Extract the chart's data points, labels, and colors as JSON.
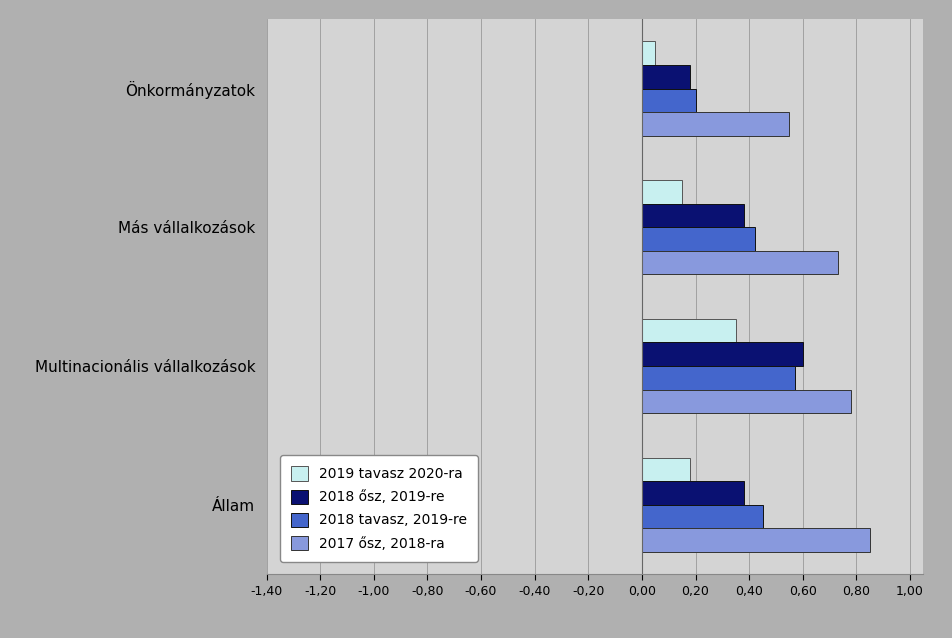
{
  "categories": [
    "Önkormányzatok",
    "Más vállalkozások",
    "Multinacionális vállalkozások",
    "Állam"
  ],
  "series": [
    {
      "label": "2019 tavasz 2020-ra",
      "color": "#c8f0f0",
      "edgecolor": "#555555",
      "values": [
        0.05,
        0.15,
        0.35,
        0.18
      ]
    },
    {
      "label": "2018 ősz, 2019-re",
      "color": "#0a1172",
      "edgecolor": "#111111",
      "values": [
        0.18,
        0.38,
        0.6,
        0.38
      ]
    },
    {
      "label": "2018 tavasz, 2019-re",
      "color": "#4466cc",
      "edgecolor": "#111111",
      "values": [
        0.2,
        0.42,
        0.57,
        0.45
      ]
    },
    {
      "label": "2017 ősz, 2018-ra",
      "color": "#8899dd",
      "edgecolor": "#333333",
      "values": [
        0.55,
        0.73,
        0.78,
        0.85
      ]
    }
  ],
  "xlim": [
    -1.4,
    1.05
  ],
  "xticks": [
    -1.4,
    -1.2,
    -1.0,
    -0.8,
    -0.6,
    -0.4,
    -0.2,
    0.0,
    0.2,
    0.4,
    0.6,
    0.8,
    1.0
  ],
  "xtick_labels": [
    "-1,40",
    "-1,20",
    "-1,00",
    "-0,80",
    "-0,60",
    "-0,40",
    "-0,20",
    "0,00",
    "0,20",
    "0,40",
    "0,60",
    "0,80",
    "1,00"
  ],
  "outer_bg": "#b0b0b0",
  "plot_bg": "#d4d4d4",
  "bar_height": 0.17,
  "cat_font_size": 11,
  "tick_font_size": 9
}
